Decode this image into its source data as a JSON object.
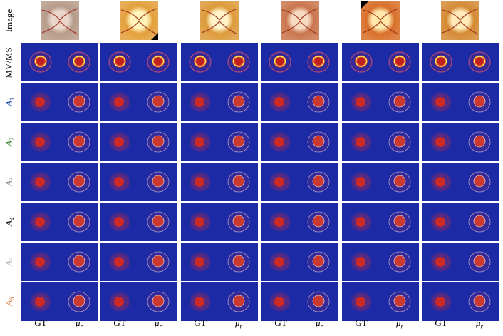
{
  "rows": [
    {
      "label": "Image",
      "kind": "text"
    },
    {
      "label": "MV/MS",
      "kind": "text"
    },
    {
      "label": "A",
      "sub": "1",
      "color": "#1f4ea8",
      "kind": "annot"
    },
    {
      "label": "A",
      "sub": "2",
      "color": "#3a8a2e",
      "kind": "annot"
    },
    {
      "label": "A",
      "sub": "3",
      "color": "#8c8c8c",
      "kind": "annot"
    },
    {
      "label": "A",
      "sub": "4",
      "color": "#111111",
      "kind": "annot"
    },
    {
      "label": "A",
      "sub": "5",
      "color": "#b8b8b8",
      "kind": "annot"
    },
    {
      "label": "A",
      "sub": "6",
      "color": "#d2692a",
      "kind": "annot"
    }
  ],
  "columns": [
    {
      "label": "GT"
    },
    {
      "label": "μ",
      "sub": "r"
    },
    {
      "label": "GT"
    },
    {
      "label": "μ",
      "sub": "r"
    },
    {
      "label": "GT"
    },
    {
      "label": "μ",
      "sub": "r"
    },
    {
      "label": "GT"
    },
    {
      "label": "μ",
      "sub": "r"
    },
    {
      "label": "GT"
    },
    {
      "label": "μ",
      "sub": "r"
    },
    {
      "label": "GT"
    },
    {
      "label": "μ",
      "sub": "r"
    }
  ],
  "images": [
    {
      "tone": "#b79b8a",
      "disc": "#e8d2c4"
    },
    {
      "tone": "#e3a03c",
      "disc": "#fff2b0"
    },
    {
      "tone": "#dd9a3a",
      "disc": "#fff3c2"
    },
    {
      "tone": "#c9764e",
      "disc": "#f5d8b8"
    },
    {
      "tone": "#d8702a",
      "disc": "#ffe7a0"
    },
    {
      "tone": "#d48a34",
      "disc": "#ffe9b0"
    }
  ]
}
